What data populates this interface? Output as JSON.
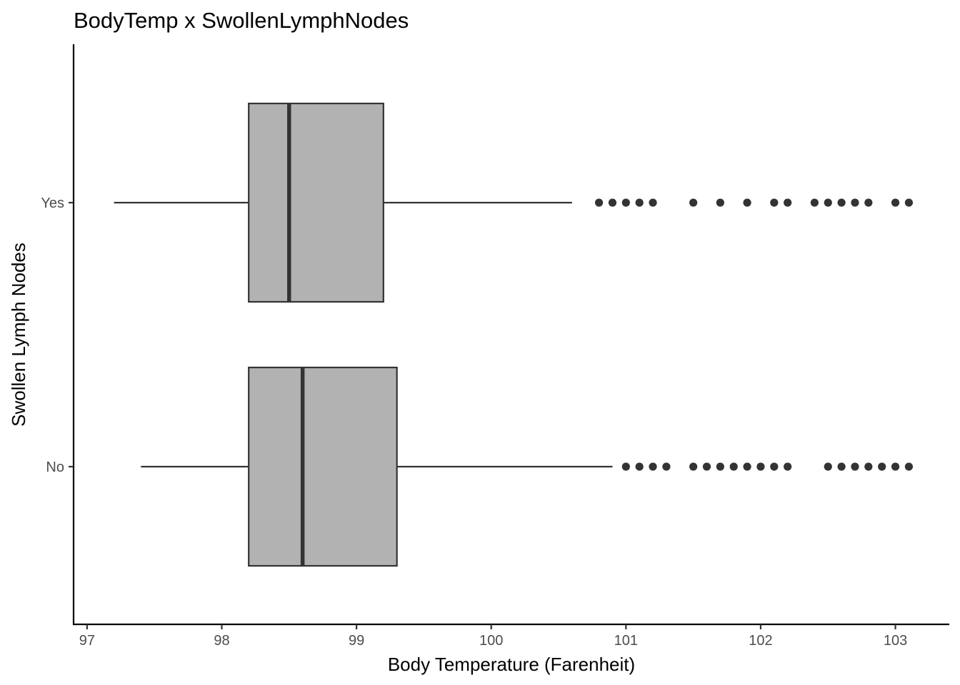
{
  "chart_data": {
    "type": "boxplot",
    "orientation": "horizontal",
    "title": "BodyTemp x SwollenLymphNodes",
    "xlabel": "Body Temperature (Farenheit)",
    "ylabel": "Swollen Lymph Nodes",
    "xlim": [
      96.9,
      103.4
    ],
    "x_ticks": [
      "97",
      "98",
      "99",
      "100",
      "101",
      "102",
      "103"
    ],
    "categories": [
      "Yes",
      "No"
    ],
    "grid": false,
    "legend": "none",
    "box_fill": "#b2b2b2",
    "line_color": "#333333",
    "series": [
      {
        "category": "Yes",
        "whisker_low": 97.2,
        "q1": 98.2,
        "median": 98.5,
        "q3": 99.2,
        "whisker_high": 100.6,
        "outliers": [
          100.8,
          100.9,
          101.0,
          101.1,
          101.2,
          101.5,
          101.7,
          101.9,
          102.1,
          102.2,
          102.4,
          102.5,
          102.6,
          102.7,
          102.8,
          103.0,
          103.1
        ]
      },
      {
        "category": "No",
        "whisker_low": 97.4,
        "q1": 98.2,
        "median": 98.6,
        "q3": 99.3,
        "whisker_high": 100.9,
        "outliers": [
          101.0,
          101.1,
          101.2,
          101.3,
          101.5,
          101.6,
          101.7,
          101.8,
          101.9,
          102.0,
          102.1,
          102.2,
          102.5,
          102.6,
          102.7,
          102.8,
          102.9,
          103.0,
          103.1
        ]
      }
    ]
  }
}
